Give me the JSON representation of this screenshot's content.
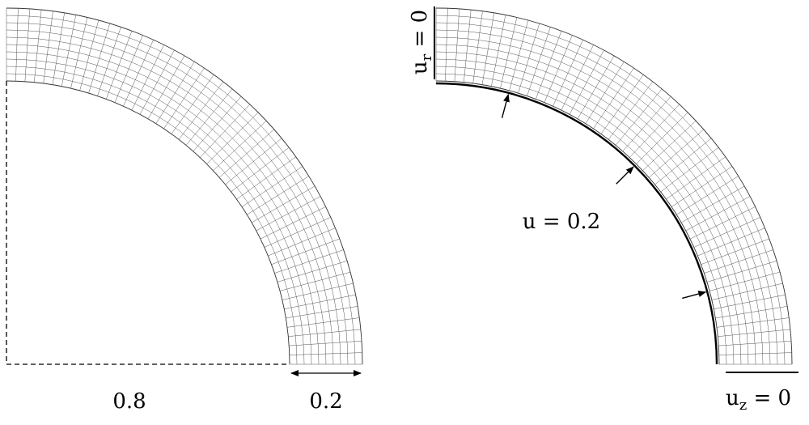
{
  "left_figure": {
    "inner_radius_label": "0.8",
    "thickness_label": "0.2",
    "mesh": {
      "radial_divisions": 10,
      "angular_divisions": 48
    }
  },
  "right_figure": {
    "top_bc_label": "uᵣ = 0",
    "top_bc": {
      "var": "u",
      "sub": "r",
      "rest": " = 0"
    },
    "bottom_bc": {
      "var": "u",
      "sub": "z",
      "rest": " = 0"
    },
    "load_label": "u = 0.2",
    "mesh": {
      "radial_divisions": 10,
      "angular_divisions": 48
    },
    "load_arrow_angles_deg": [
      75,
      45,
      15
    ]
  },
  "colors": {
    "ink": "#000000",
    "mesh": "#555555"
  }
}
